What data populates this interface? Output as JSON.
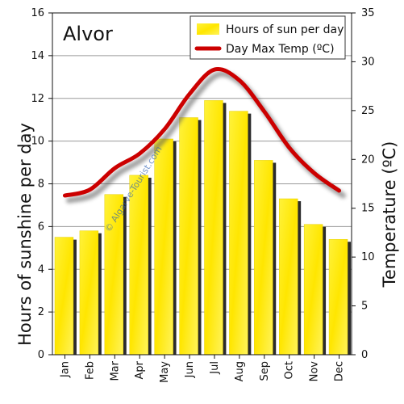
{
  "chart_data": {
    "type": "bar",
    "title": "Alvor",
    "categories": [
      "Jan",
      "Feb",
      "Mar",
      "Apr",
      "May",
      "Jun",
      "Jul",
      "Aug",
      "Sep",
      "Oct",
      "Nov",
      "Dec"
    ],
    "series": [
      {
        "name": "Hours of sun per day",
        "type": "bar",
        "axis": "left",
        "color": "#ffee00",
        "values": [
          5.5,
          5.8,
          7.5,
          8.4,
          10.1,
          11.1,
          11.9,
          11.4,
          9.1,
          7.3,
          6.1,
          5.4
        ]
      },
      {
        "name": "Day Max Temp (ºC)",
        "type": "line",
        "axis": "right",
        "color": "#cc0000",
        "values": [
          16.3,
          16.9,
          19.1,
          20.6,
          23.1,
          26.7,
          29.2,
          28.1,
          24.9,
          21.2,
          18.6,
          16.8
        ]
      }
    ],
    "ylabel": "Hours of sunshine per day",
    "ylim": [
      0,
      16
    ],
    "yticks": [
      0,
      2,
      4,
      6,
      8,
      10,
      12,
      14,
      16
    ],
    "y2label": "Temperature (ºC)",
    "y2lim": [
      0,
      35
    ],
    "y2ticks": [
      0,
      5,
      10,
      15,
      20,
      25,
      30,
      35
    ],
    "grid": true,
    "legend_position": "top-right",
    "watermark": "© Algarve-Tourist.com"
  }
}
